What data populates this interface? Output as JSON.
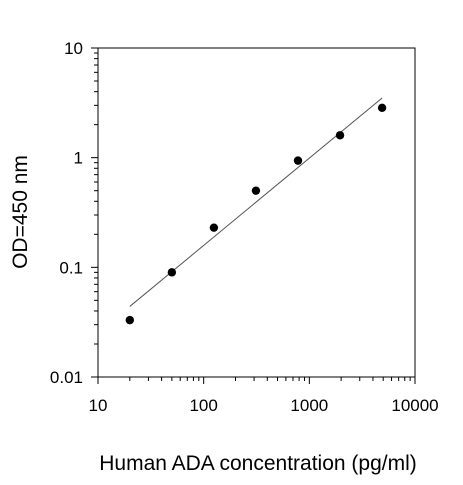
{
  "chart_data": {
    "type": "scatter",
    "xlabel": "Human ADA concentration (pg/ml)",
    "ylabel": "OD=450 nm",
    "x_scale": "log",
    "y_scale": "log",
    "xlim": [
      10,
      10000
    ],
    "ylim": [
      0.01,
      10
    ],
    "x_ticks": [
      "10",
      "100",
      "1000",
      "10000"
    ],
    "y_ticks": [
      "0.01",
      "0.1",
      "1",
      "10"
    ],
    "grid": false,
    "series": [
      {
        "type": "scatter",
        "x": [
          20,
          50,
          125,
          312.5,
          781,
          1953,
          4883
        ],
        "y": [
          0.033,
          0.09,
          0.23,
          0.5,
          0.94,
          1.6,
          2.85
        ]
      },
      {
        "type": "line",
        "x": [
          20,
          4883
        ],
        "y": [
          0.044,
          3.5
        ]
      }
    ],
    "colors": {
      "marker": "#000000",
      "fit_line": "#555555",
      "axis": "#000000"
    }
  }
}
